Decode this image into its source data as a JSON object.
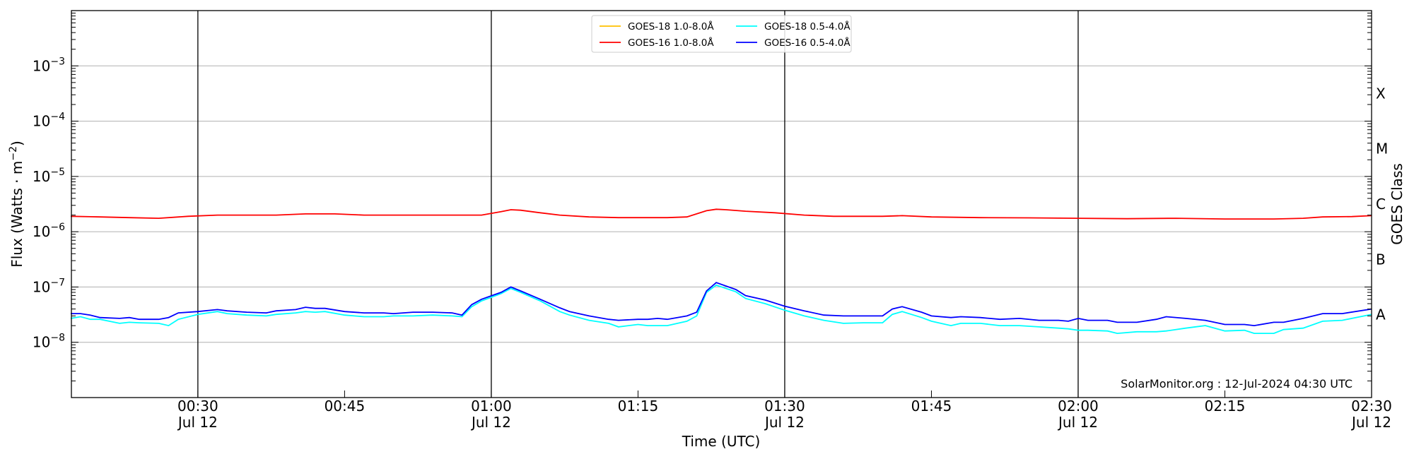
{
  "chart_data": {
    "type": "line",
    "title": "",
    "xlabel": "Time (UTC)",
    "ylabel": "Flux (Watts · m",
    "ylabel_sup": "−2",
    "ylabel_close": ")",
    "right_label": "GOES Class",
    "y_scale": "log",
    "ylim": [
      1e-09,
      0.01
    ],
    "xlim_minutes": [
      17.07,
      150
    ],
    "y_ticks": [
      {
        "value": 1e-08,
        "base": "10",
        "exp": "−8"
      },
      {
        "value": 1e-07,
        "base": "10",
        "exp": "−7"
      },
      {
        "value": 1e-06,
        "base": "10",
        "exp": "−6"
      },
      {
        "value": 1e-05,
        "base": "10",
        "exp": "−5"
      },
      {
        "value": 0.0001,
        "base": "10",
        "exp": "−4"
      },
      {
        "value": 0.001,
        "base": "10",
        "exp": "−3"
      }
    ],
    "x_ticks": [
      {
        "minute": 30,
        "time": "00:30",
        "date": "Jul 12"
      },
      {
        "minute": 45,
        "time": "00:45",
        "date": ""
      },
      {
        "minute": 60,
        "time": "01:00",
        "date": "Jul 12"
      },
      {
        "minute": 75,
        "time": "01:15",
        "date": ""
      },
      {
        "minute": 90,
        "time": "01:30",
        "date": "Jul 12"
      },
      {
        "minute": 105,
        "time": "01:45",
        "date": ""
      },
      {
        "minute": 120,
        "time": "02:00",
        "date": "Jul 12"
      },
      {
        "minute": 135,
        "time": "02:15",
        "date": ""
      },
      {
        "minute": 150,
        "time": "02:30",
        "date": "Jul 12"
      }
    ],
    "vertical_lines_minutes": [
      30,
      60,
      90,
      120
    ],
    "classes": [
      {
        "label": "A",
        "value": 3.16e-08
      },
      {
        "label": "B",
        "value": 3.16e-07
      },
      {
        "label": "C",
        "value": 3.16e-06
      },
      {
        "label": "M",
        "value": 3.16e-05
      },
      {
        "label": "X",
        "value": 0.000316
      }
    ],
    "legend_position": "top-center",
    "annotation": "SolarMonitor.org : 12-Jul-2024 04:30 UTC",
    "series": [
      {
        "name": "GOES-18 1.0-8.0Å",
        "color": "#ffc000",
        "x": [],
        "y": []
      },
      {
        "name": "GOES-18 0.5-4.0Å",
        "color": "#00ffff",
        "x": [
          17,
          18,
          19,
          20,
          22,
          23,
          24,
          26,
          27,
          28,
          30,
          32,
          33,
          35,
          37,
          38,
          40,
          41,
          42,
          43,
          45,
          47,
          49,
          50,
          52,
          54,
          56,
          57,
          58,
          59,
          61,
          62,
          63,
          65,
          67,
          68,
          70,
          72,
          73,
          75,
          76,
          77,
          78,
          80,
          81,
          82,
          83,
          85,
          86,
          88,
          90,
          92,
          94,
          96,
          98,
          100,
          101,
          102,
          104,
          105,
          107,
          108,
          110,
          112,
          114,
          116,
          118,
          119,
          120,
          121,
          123,
          124,
          126,
          128,
          129,
          131,
          133,
          135,
          137,
          138,
          140,
          141,
          143,
          145,
          147,
          150
        ],
        "y": [
          2.7e-08,
          2.9e-08,
          2.6e-08,
          2.6e-08,
          2.2e-08,
          2.3e-08,
          2.25e-08,
          2.2e-08,
          2e-08,
          2.6e-08,
          3.2e-08,
          3.6e-08,
          3.3e-08,
          3.1e-08,
          3e-08,
          3.2e-08,
          3.4e-08,
          3.6e-08,
          3.5e-08,
          3.6e-08,
          3.1e-08,
          2.9e-08,
          2.9e-08,
          3e-08,
          3e-08,
          3.1e-08,
          3e-08,
          2.9e-08,
          4.4e-08,
          5.6e-08,
          7.6e-08,
          9.4e-08,
          8e-08,
          5.6e-08,
          3.6e-08,
          3.1e-08,
          2.5e-08,
          2.2e-08,
          1.9e-08,
          2.1e-08,
          2e-08,
          2e-08,
          2e-08,
          2.4e-08,
          3e-08,
          8e-08,
          1.08e-07,
          8.2e-08,
          6.2e-08,
          5e-08,
          3.8e-08,
          3e-08,
          2.5e-08,
          2.2e-08,
          2.25e-08,
          2.25e-08,
          3.2e-08,
          3.6e-08,
          2.8e-08,
          2.4e-08,
          2e-08,
          2.2e-08,
          2.2e-08,
          2e-08,
          2e-08,
          1.9e-08,
          1.8e-08,
          1.75e-08,
          1.65e-08,
          1.65e-08,
          1.6e-08,
          1.45e-08,
          1.55e-08,
          1.55e-08,
          1.6e-08,
          1.8e-08,
          2e-08,
          1.6e-08,
          1.65e-08,
          1.45e-08,
          1.45e-08,
          1.7e-08,
          1.8e-08,
          2.4e-08,
          2.5e-08,
          3.2e-08
        ]
      },
      {
        "name": "GOES-16 1.0-8.0Å",
        "color": "#ff0000",
        "x": [
          17,
          20,
          23,
          26,
          29,
          32,
          35,
          38,
          41,
          44,
          47,
          52,
          56,
          59,
          61,
          62,
          63,
          65,
          67,
          70,
          73,
          78,
          80,
          82,
          83,
          84,
          86,
          89,
          92,
          95,
          100,
          102,
          105,
          110,
          115,
          120,
          125,
          130,
          135,
          140,
          143,
          145,
          148,
          150
        ],
        "y": [
          1.9e-06,
          1.85e-06,
          1.8e-06,
          1.75e-06,
          1.9e-06,
          2e-06,
          2e-06,
          2e-06,
          2.1e-06,
          2.1e-06,
          2e-06,
          2e-06,
          2e-06,
          2e-06,
          2.3e-06,
          2.5e-06,
          2.45e-06,
          2.2e-06,
          2e-06,
          1.85e-06,
          1.8e-06,
          1.8e-06,
          1.85e-06,
          2.4e-06,
          2.55e-06,
          2.5e-06,
          2.35e-06,
          2.2e-06,
          2e-06,
          1.9e-06,
          1.9e-06,
          1.95e-06,
          1.85e-06,
          1.8e-06,
          1.78e-06,
          1.75e-06,
          1.72e-06,
          1.75e-06,
          1.7e-06,
          1.7e-06,
          1.75e-06,
          1.85e-06,
          1.88e-06,
          1.95e-06
        ]
      },
      {
        "name": "GOES-16 0.5-4.0Å",
        "color": "#0000ff",
        "x": [
          17,
          18,
          19,
          20,
          22,
          23,
          24,
          26,
          27,
          28,
          30,
          32,
          33,
          35,
          37,
          38,
          40,
          41,
          42,
          43,
          45,
          47,
          49,
          50,
          52,
          54,
          56,
          57,
          58,
          59,
          61,
          62,
          63,
          65,
          67,
          68,
          70,
          72,
          73,
          75,
          76,
          77,
          78,
          80,
          81,
          82,
          83,
          85,
          86,
          88,
          90,
          92,
          94,
          96,
          98,
          100,
          101,
          102,
          104,
          105,
          107,
          108,
          110,
          112,
          114,
          116,
          118,
          119,
          120,
          121,
          123,
          124,
          126,
          128,
          129,
          131,
          133,
          135,
          137,
          138,
          140,
          141,
          143,
          145,
          147,
          150
        ],
        "y": [
          3.3e-08,
          3.3e-08,
          3.1e-08,
          2.8e-08,
          2.7e-08,
          2.8e-08,
          2.6e-08,
          2.6e-08,
          2.8e-08,
          3.4e-08,
          3.6e-08,
          3.9e-08,
          3.7e-08,
          3.5e-08,
          3.4e-08,
          3.7e-08,
          3.9e-08,
          4.3e-08,
          4.1e-08,
          4.1e-08,
          3.6e-08,
          3.4e-08,
          3.4e-08,
          3.3e-08,
          3.5e-08,
          3.5e-08,
          3.4e-08,
          3.1e-08,
          4.8e-08,
          6e-08,
          8e-08,
          1e-07,
          8.5e-08,
          6e-08,
          4.2e-08,
          3.6e-08,
          3e-08,
          2.6e-08,
          2.5e-08,
          2.6e-08,
          2.6e-08,
          2.7e-08,
          2.6e-08,
          3e-08,
          3.5e-08,
          8.5e-08,
          1.2e-07,
          9e-08,
          7e-08,
          5.8e-08,
          4.5e-08,
          3.7e-08,
          3.1e-08,
          3e-08,
          3e-08,
          3e-08,
          4e-08,
          4.4e-08,
          3.5e-08,
          3e-08,
          2.8e-08,
          2.9e-08,
          2.8e-08,
          2.6e-08,
          2.7e-08,
          2.5e-08,
          2.5e-08,
          2.4e-08,
          2.7e-08,
          2.5e-08,
          2.5e-08,
          2.3e-08,
          2.3e-08,
          2.6e-08,
          2.9e-08,
          2.7e-08,
          2.5e-08,
          2.1e-08,
          2.1e-08,
          2e-08,
          2.3e-08,
          2.3e-08,
          2.7e-08,
          3.3e-08,
          3.3e-08,
          4e-08
        ]
      }
    ],
    "legend_order": [
      0,
      2,
      1,
      3
    ]
  }
}
